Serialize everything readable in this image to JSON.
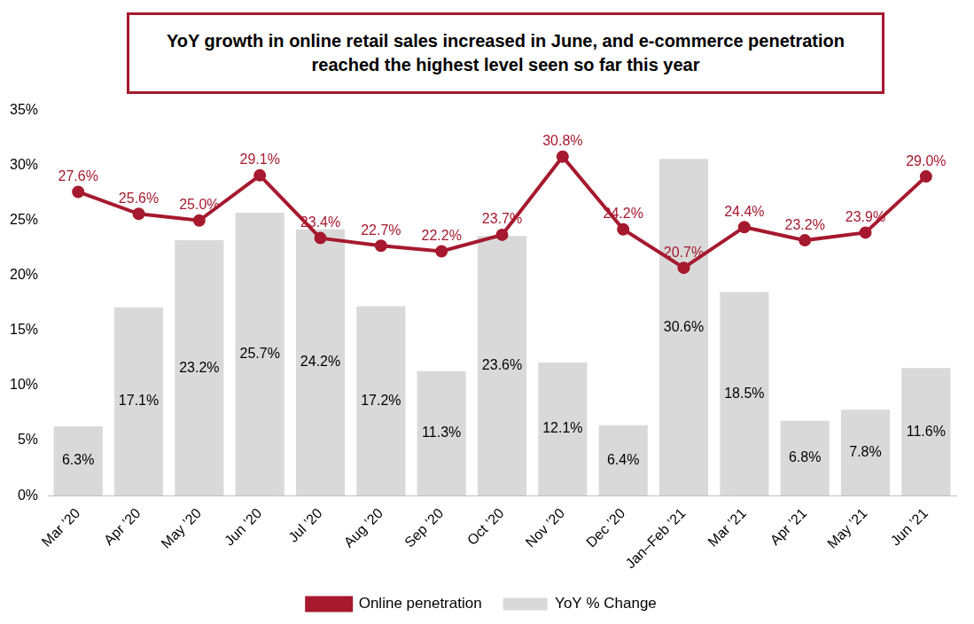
{
  "chart_data": {
    "type": "bar",
    "title": "YoY growth in online retail sales increased in June, and e-commerce penetration reached the highest level seen so far this year",
    "categories": [
      "Mar ’20",
      "Apr ’20",
      "May ’20",
      "Jun ’20",
      "Jul ’20",
      "Aug ’20",
      "Sep ’20",
      "Oct ’20",
      "Nov ’20",
      "Dec ’20",
      "Jan–Feb ’21",
      "Mar ’21",
      "Apr ’21",
      "May ’21",
      "Jun ’21"
    ],
    "series": [
      {
        "name": "YoY % Change",
        "type": "bar",
        "color": "#d9d9d9",
        "values": [
          6.3,
          17.1,
          23.2,
          25.7,
          24.2,
          17.2,
          11.3,
          23.6,
          12.1,
          6.4,
          30.6,
          18.5,
          6.8,
          7.8,
          11.6
        ],
        "value_labels": [
          "6.3%",
          "17.1%",
          "23.2%",
          "25.7%",
          "24.2%",
          "17.2%",
          "11.3%",
          "23.6%",
          "12.1%",
          "6.4%",
          "30.6%",
          "18.5%",
          "6.8%",
          "7.8%",
          "11.6%"
        ]
      },
      {
        "name": "Online penetration",
        "type": "line",
        "color": "#a6192e",
        "marker": "circle",
        "line_style": "solid",
        "values": [
          27.6,
          25.6,
          25.0,
          29.1,
          23.4,
          22.7,
          22.2,
          23.7,
          30.8,
          24.2,
          20.7,
          24.4,
          23.2,
          23.9,
          29.0
        ],
        "value_labels": [
          "27.6%",
          "25.6%",
          "25.0%",
          "29.1%",
          "23.4%",
          "22.7%",
          "22.2%",
          "23.7%",
          "30.8%",
          "24.2%",
          "20.7%",
          "24.4%",
          "23.2%",
          "23.9%",
          "29.0%"
        ]
      }
    ],
    "ylim": [
      0,
      35
    ],
    "yticks": [
      {
        "value": 0,
        "label": "0%"
      },
      {
        "value": 5,
        "label": "5%"
      },
      {
        "value": 10,
        "label": "10%"
      },
      {
        "value": 15,
        "label": "15%"
      },
      {
        "value": 20,
        "label": "20%"
      },
      {
        "value": 25,
        "label": "25%"
      },
      {
        "value": 30,
        "label": "30%"
      },
      {
        "value": 35,
        "label": "35%"
      }
    ],
    "grid": false,
    "legend": "bottom",
    "data_labels": true
  }
}
